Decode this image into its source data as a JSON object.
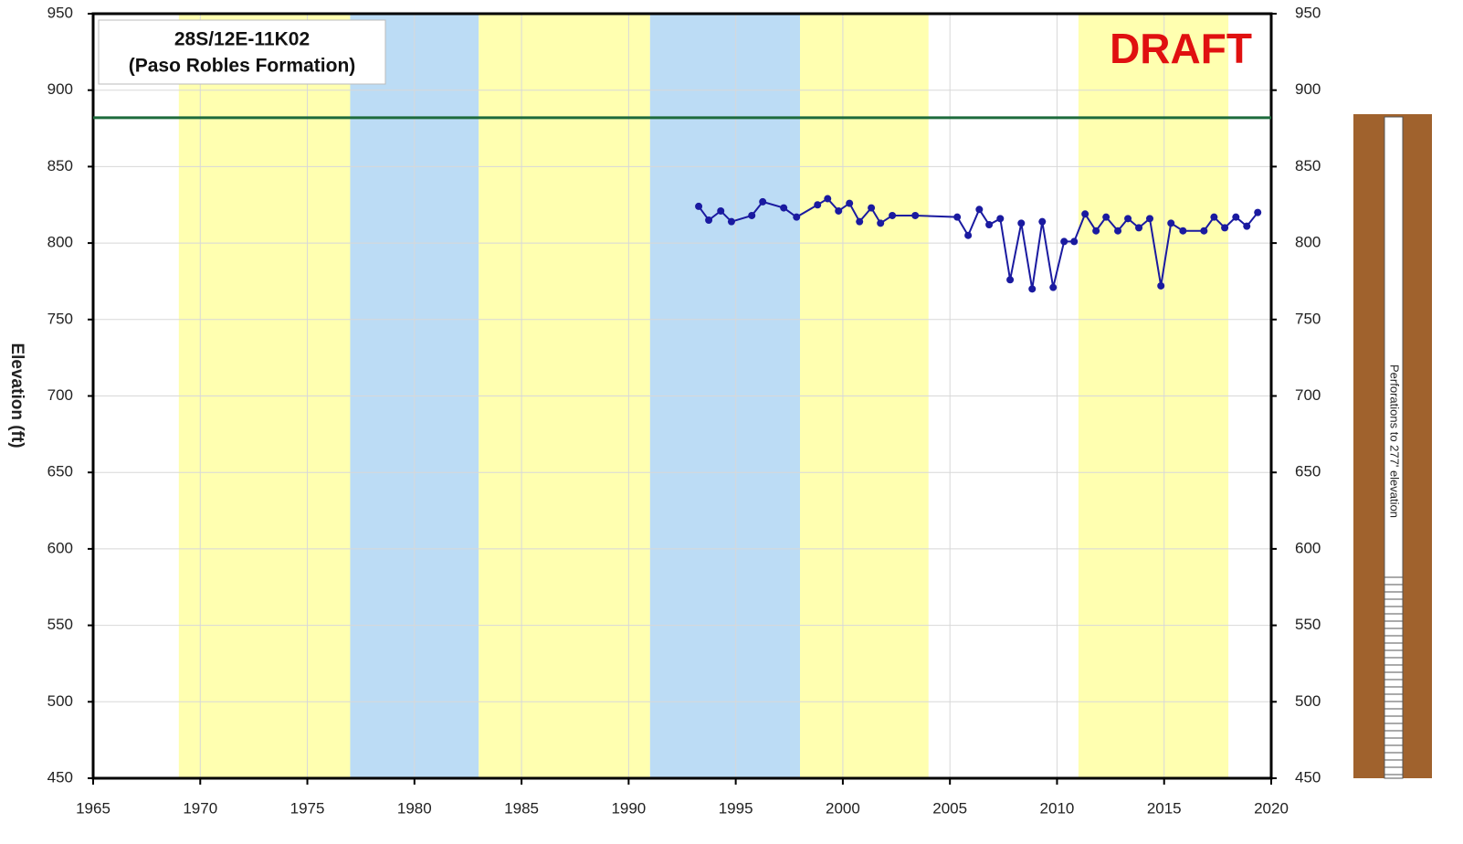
{
  "chart_data": {
    "type": "line",
    "title_lines": [
      "28S/12E-11K02",
      "(Paso Robles Formation)"
    ],
    "annotation": "DRAFT",
    "ylabel": "Elevation (ft)",
    "well_note": "Perforations to 277' elevation",
    "xlim": [
      1965,
      2020
    ],
    "xticks": [
      1965,
      1970,
      1975,
      1980,
      1985,
      1990,
      1995,
      2000,
      2005,
      2010,
      2015,
      2020
    ],
    "ylim": [
      450,
      950
    ],
    "yticks": [
      450,
      500,
      550,
      600,
      650,
      700,
      750,
      800,
      850,
      900,
      950
    ],
    "y2lim": [
      450,
      950
    ],
    "grid": true,
    "bands": [
      {
        "start": 1969,
        "end": 1977,
        "color": "#ffffb0"
      },
      {
        "start": 1977,
        "end": 1983,
        "color": "#bcdcf5"
      },
      {
        "start": 1983,
        "end": 1991,
        "color": "#ffffb0"
      },
      {
        "start": 1991,
        "end": 1998,
        "color": "#bcdcf5"
      },
      {
        "start": 1998,
        "end": 2004,
        "color": "#ffffb0"
      },
      {
        "start": 2011,
        "end": 2018,
        "color": "#ffffb0"
      }
    ],
    "reference_line": {
      "value": 882,
      "color": "#1d6b3c"
    },
    "color": "#1a1aa0",
    "x": [
      1993.27,
      1993.74,
      1994.3,
      1994.8,
      1995.75,
      1996.26,
      1997.24,
      1997.84,
      1998.82,
      1999.29,
      1999.8,
      2000.31,
      2000.78,
      2001.33,
      2001.76,
      2002.31,
      2003.38,
      2005.34,
      2005.85,
      2006.37,
      2006.83,
      2007.35,
      2007.81,
      2008.33,
      2008.84,
      2009.31,
      2009.82,
      2010.33,
      2010.8,
      2011.31,
      2011.82,
      2012.29,
      2012.84,
      2013.31,
      2013.82,
      2014.33,
      2014.85,
      2015.32,
      2015.88,
      2016.86,
      2017.33,
      2017.83,
      2018.35,
      2018.86,
      2019.37
    ],
    "values": [
      824,
      815,
      821,
      814,
      818,
      827,
      823,
      817,
      825,
      829,
      821,
      826,
      814,
      823,
      813,
      818,
      818,
      817,
      805,
      822,
      812,
      816,
      776,
      813,
      770,
      814,
      771,
      801,
      801,
      819,
      808,
      817,
      808,
      816,
      810,
      816,
      772,
      813,
      808,
      808,
      817,
      810,
      817,
      811,
      820
    ]
  }
}
